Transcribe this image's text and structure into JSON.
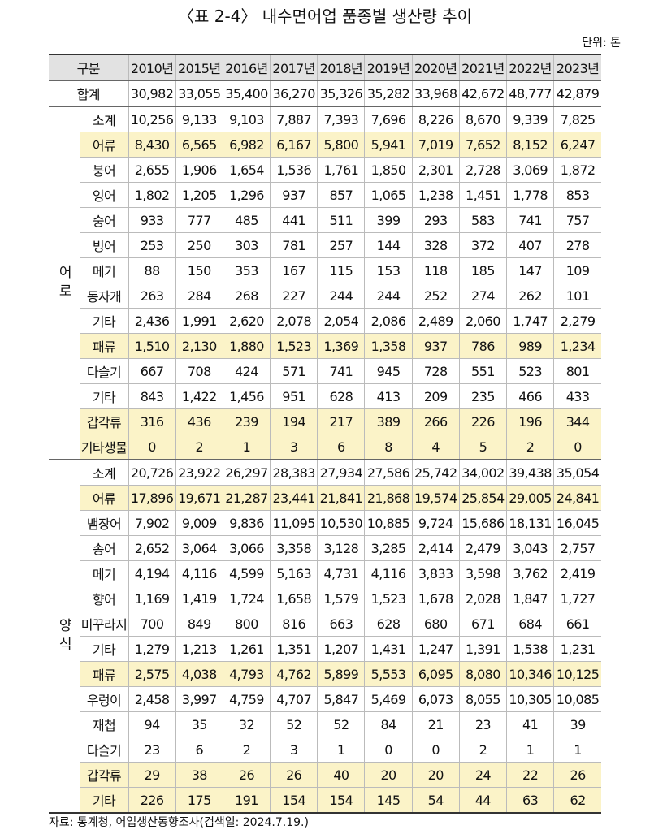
{
  "title": "〈표 2-4〉 내수면어업 품종별 생산량 추이",
  "unit": "단위: 톤",
  "table": {
    "header": [
      "구분",
      "2010년",
      "2015년",
      "2016년",
      "2017년",
      "2018년",
      "2019년",
      "2020년",
      "2021년",
      "2022년",
      "2023년"
    ],
    "total": {
      "label": "합계",
      "values": [
        "30,982",
        "33,055",
        "35,400",
        "36,270",
        "35,326",
        "35,282",
        "33,968",
        "42,672",
        "48,777",
        "42,879"
      ]
    },
    "groups": [
      {
        "name": "어로",
        "rows": [
          {
            "label": "소계",
            "highlight": false,
            "values": [
              "10,256",
              "9,133",
              "9,103",
              "7,887",
              "7,393",
              "7,696",
              "8,226",
              "8,670",
              "9,339",
              "7,825"
            ]
          },
          {
            "label": "어류",
            "highlight": true,
            "values": [
              "8,430",
              "6,565",
              "6,982",
              "6,167",
              "5,800",
              "5,941",
              "7,019",
              "7,652",
              "8,152",
              "6,247"
            ]
          },
          {
            "label": "붕어",
            "highlight": false,
            "values": [
              "2,655",
              "1,906",
              "1,654",
              "1,536",
              "1,761",
              "1,850",
              "2,301",
              "2,728",
              "3,069",
              "1,872"
            ]
          },
          {
            "label": "잉어",
            "highlight": false,
            "values": [
              "1,802",
              "1,205",
              "1,296",
              "937",
              "857",
              "1,065",
              "1,238",
              "1,451",
              "1,778",
              "853"
            ]
          },
          {
            "label": "숭어",
            "highlight": false,
            "values": [
              "933",
              "777",
              "485",
              "441",
              "511",
              "399",
              "293",
              "583",
              "741",
              "757"
            ]
          },
          {
            "label": "빙어",
            "highlight": false,
            "values": [
              "253",
              "250",
              "303",
              "781",
              "257",
              "144",
              "328",
              "372",
              "407",
              "278"
            ]
          },
          {
            "label": "메기",
            "highlight": false,
            "values": [
              "88",
              "150",
              "353",
              "167",
              "115",
              "153",
              "118",
              "185",
              "147",
              "109"
            ]
          },
          {
            "label": "동자개",
            "highlight": false,
            "values": [
              "263",
              "284",
              "268",
              "227",
              "244",
              "244",
              "252",
              "274",
              "262",
              "101"
            ]
          },
          {
            "label": "기타",
            "highlight": false,
            "values": [
              "2,436",
              "1,991",
              "2,620",
              "2,078",
              "2,054",
              "2,086",
              "2,489",
              "2,060",
              "1,747",
              "2,279"
            ]
          },
          {
            "label": "패류",
            "highlight": true,
            "values": [
              "1,510",
              "2,130",
              "1,880",
              "1,523",
              "1,369",
              "1,358",
              "937",
              "786",
              "989",
              "1,234"
            ]
          },
          {
            "label": "다슬기",
            "highlight": false,
            "values": [
              "667",
              "708",
              "424",
              "571",
              "741",
              "945",
              "728",
              "551",
              "523",
              "801"
            ]
          },
          {
            "label": "기타",
            "highlight": false,
            "values": [
              "843",
              "1,422",
              "1,456",
              "951",
              "628",
              "413",
              "209",
              "235",
              "466",
              "433"
            ]
          },
          {
            "label": "갑각류",
            "highlight": true,
            "values": [
              "316",
              "436",
              "239",
              "194",
              "217",
              "389",
              "266",
              "226",
              "196",
              "344"
            ]
          },
          {
            "label": "기타생물",
            "highlight": true,
            "values": [
              "0",
              "2",
              "1",
              "3",
              "6",
              "8",
              "4",
              "5",
              "2",
              "0"
            ]
          }
        ]
      },
      {
        "name": "양식",
        "rows": [
          {
            "label": "소계",
            "highlight": false,
            "values": [
              "20,726",
              "23,922",
              "26,297",
              "28,383",
              "27,934",
              "27,586",
              "25,742",
              "34,002",
              "39,438",
              "35,054"
            ]
          },
          {
            "label": "어류",
            "highlight": true,
            "values": [
              "17,896",
              "19,671",
              "21,287",
              "23,441",
              "21,841",
              "21,868",
              "19,574",
              "25,854",
              "29,005",
              "24,841"
            ]
          },
          {
            "label": "뱀장어",
            "highlight": false,
            "values": [
              "7,902",
              "9,009",
              "9,836",
              "11,095",
              "10,530",
              "10,885",
              "9,724",
              "15,686",
              "18,131",
              "16,045"
            ]
          },
          {
            "label": "송어",
            "highlight": false,
            "values": [
              "2,652",
              "3,064",
              "3,066",
              "3,358",
              "3,128",
              "3,285",
              "2,414",
              "2,479",
              "3,043",
              "2,757"
            ]
          },
          {
            "label": "메기",
            "highlight": false,
            "values": [
              "4,194",
              "4,116",
              "4,599",
              "5,163",
              "4,731",
              "4,116",
              "3,833",
              "3,598",
              "3,762",
              "2,419"
            ]
          },
          {
            "label": "향어",
            "highlight": false,
            "values": [
              "1,169",
              "1,419",
              "1,724",
              "1,658",
              "1,579",
              "1,523",
              "1,678",
              "2,028",
              "1,847",
              "1,727"
            ]
          },
          {
            "label": "미꾸라지",
            "highlight": false,
            "values": [
              "700",
              "849",
              "800",
              "816",
              "663",
              "628",
              "680",
              "671",
              "684",
              "661"
            ]
          },
          {
            "label": "기타",
            "highlight": false,
            "values": [
              "1,279",
              "1,213",
              "1,261",
              "1,351",
              "1,207",
              "1,431",
              "1,247",
              "1,391",
              "1,538",
              "1,231"
            ]
          },
          {
            "label": "패류",
            "highlight": true,
            "values": [
              "2,575",
              "4,038",
              "4,793",
              "4,762",
              "5,899",
              "5,553",
              "6,095",
              "8,080",
              "10,346",
              "10,125"
            ]
          },
          {
            "label": "우렁이",
            "highlight": false,
            "values": [
              "2,458",
              "3,997",
              "4,759",
              "4,707",
              "5,847",
              "5,469",
              "6,073",
              "8,055",
              "10,305",
              "10,085"
            ]
          },
          {
            "label": "재첩",
            "highlight": false,
            "values": [
              "94",
              "35",
              "32",
              "52",
              "52",
              "84",
              "21",
              "23",
              "41",
              "39"
            ]
          },
          {
            "label": "다슬기",
            "highlight": false,
            "values": [
              "23",
              "6",
              "2",
              "3",
              "1",
              "0",
              "0",
              "2",
              "1",
              "1"
            ]
          },
          {
            "label": "갑각류",
            "highlight": true,
            "values": [
              "29",
              "38",
              "26",
              "26",
              "40",
              "20",
              "20",
              "24",
              "22",
              "26"
            ]
          },
          {
            "label": "기타",
            "highlight": true,
            "values": [
              "226",
              "175",
              "191",
              "154",
              "154",
              "145",
              "54",
              "44",
              "63",
              "62"
            ]
          }
        ]
      }
    ]
  },
  "source": "자료: 통계청, 어업생산동향조사(검색일: 2024.7.19.)"
}
